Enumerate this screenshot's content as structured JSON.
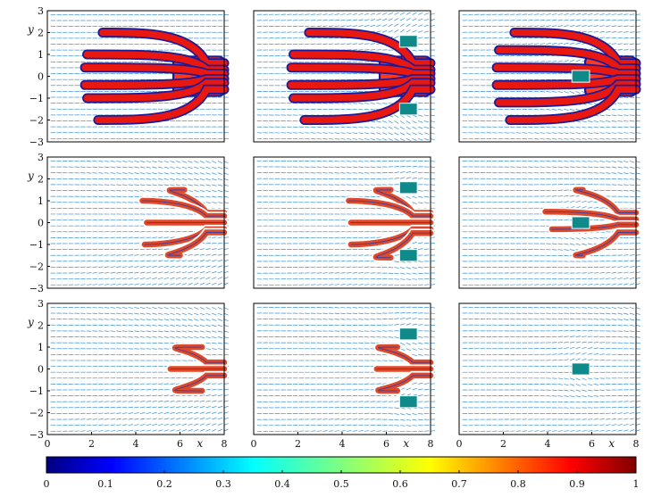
{
  "figure": {
    "rows": 3,
    "cols": 3,
    "x_label": "x",
    "y_label": "y",
    "x_ticks": [
      "0",
      "2",
      "4",
      "6",
      "8"
    ],
    "y_ticks": [
      "3",
      "2",
      "1",
      "0",
      "−1",
      "−2",
      "−3"
    ]
  },
  "chart_data": {
    "type": "heatmap",
    "title": "",
    "xlabel": "x",
    "ylabel": "y",
    "xlim": [
      0,
      8
    ],
    "ylim": [
      -3,
      3
    ],
    "colorbar": {
      "range": [
        0,
        1
      ],
      "ticks": [
        "0",
        "0.1",
        "0.2",
        "0.3",
        "0.4",
        "0.5",
        "0.6",
        "0.7",
        "0.8",
        "0.9",
        "1"
      ],
      "tick_values": [
        0,
        0.1,
        0.2,
        0.3,
        0.4,
        0.5,
        0.6,
        0.7,
        0.8,
        0.9,
        1
      ],
      "colormap": [
        "#00007f",
        "#0000ff",
        "#007fff",
        "#00ffff",
        "#7fff7f",
        "#ffff00",
        "#ff7f00",
        "#ff0000",
        "#7f0000"
      ]
    },
    "panels": [
      {
        "id": "r1c1",
        "fingers": [
          {
            "y": 2,
            "x0": 2.5
          },
          {
            "y": 1,
            "x0": 1.8
          },
          {
            "y": 0.4,
            "x0": 1.7
          },
          {
            "y": -0.4,
            "x0": 1.7
          },
          {
            "y": -1,
            "x0": 1.8
          },
          {
            "y": -2,
            "x0": 2.3
          }
        ],
        "obstacles": []
      },
      {
        "id": "r1c2",
        "fingers": [
          {
            "y": 2,
            "x0": 2.5
          },
          {
            "y": 1,
            "x0": 1.8
          },
          {
            "y": 0.4,
            "x0": 1.7
          },
          {
            "y": -0.4,
            "x0": 1.7
          },
          {
            "y": -1,
            "x0": 1.8
          },
          {
            "y": -2,
            "x0": 2.3
          }
        ],
        "obstacles": [
          {
            "x": 7,
            "y": 1.6
          },
          {
            "x": 7,
            "y": -1.5
          }
        ]
      },
      {
        "id": "r1c3",
        "fingers": [
          {
            "y": 2,
            "x0": 2.5
          },
          {
            "y": 1.2,
            "x0": 1.8
          },
          {
            "y": 0.4,
            "x0": 1.7
          },
          {
            "y": -0.4,
            "x0": 1.7
          },
          {
            "y": -1.2,
            "x0": 1.8
          },
          {
            "y": -2,
            "x0": 2.3
          }
        ],
        "obstacles": [
          {
            "x": 5.5,
            "y": 0
          }
        ]
      },
      {
        "id": "r2c1",
        "fingers": [
          {
            "y": 1.5,
            "x0": 6.2
          },
          {
            "y": 1,
            "x0": 4.3
          },
          {
            "y": 0,
            "x0": 4.5
          },
          {
            "y": -1,
            "x0": 4.4
          },
          {
            "y": -1.5,
            "x0": 6.0
          }
        ],
        "obstacles": []
      },
      {
        "id": "r2c2",
        "fingers": [
          {
            "y": 1.5,
            "x0": 6.2
          },
          {
            "y": 1,
            "x0": 4.3
          },
          {
            "y": 0,
            "x0": 4.4
          },
          {
            "y": -1,
            "x0": 4.4
          },
          {
            "y": -1.6,
            "x0": 6.2
          }
        ],
        "obstacles": [
          {
            "x": 7,
            "y": 1.6
          },
          {
            "x": 7,
            "y": -1.5
          }
        ]
      },
      {
        "id": "r2c3",
        "fingers": [
          {
            "y": 1.5,
            "x0": 5.6
          },
          {
            "y": 0.5,
            "x0": 3.9
          },
          {
            "y": -0.3,
            "x0": 4.2
          },
          {
            "y": -1.5,
            "x0": 5.6
          }
        ],
        "obstacles": [
          {
            "x": 5.5,
            "y": 0
          }
        ]
      },
      {
        "id": "r3c1",
        "fingers": [
          {
            "y": 1,
            "x0": 7.0
          },
          {
            "y": 0,
            "x0": 6.3
          },
          {
            "y": -1,
            "x0": 7.0
          }
        ],
        "obstacles": []
      },
      {
        "id": "r3c2",
        "fingers": [
          {
            "y": 1,
            "x0": 6.5
          },
          {
            "y": 0,
            "x0": 6.3
          },
          {
            "y": -1,
            "x0": 6.5
          }
        ],
        "obstacles": [
          {
            "x": 7,
            "y": 1.6
          },
          {
            "x": 7,
            "y": -1.5
          }
        ]
      },
      {
        "id": "r3c3",
        "fingers": [],
        "obstacles": [
          {
            "x": 5.5,
            "y": 0
          }
        ]
      }
    ]
  }
}
